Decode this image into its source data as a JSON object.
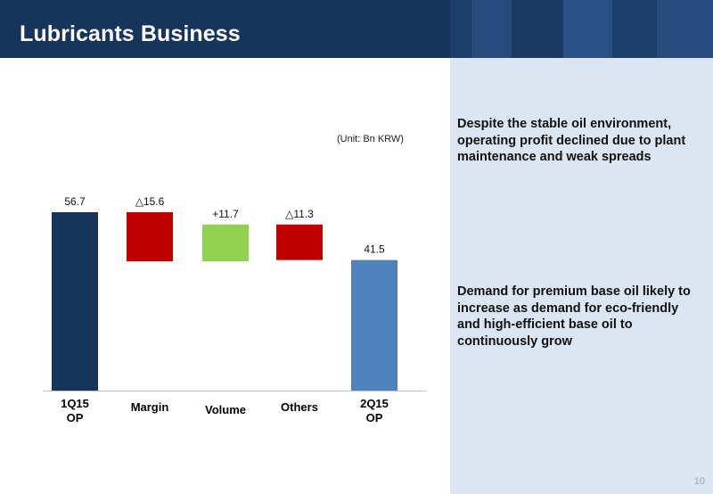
{
  "header": {
    "title": "Lubricants Business"
  },
  "unit_label": "(Unit: Bn KRW)",
  "notes": [
    "Despite the stable oil environment, operating profit declined due to plant maintenance and weak spreads",
    "Demand for premium base oil likely to increase as demand for eco-friendly and high-efficient base oil to continuously grow"
  ],
  "page_number": "10",
  "chart_data": {
    "type": "bar",
    "subtype": "waterfall",
    "categories": [
      "1Q15 OP",
      "Margin",
      "Volume",
      "Others",
      "2Q15 OP"
    ],
    "values": [
      56.7,
      -15.6,
      11.7,
      -11.3,
      41.5
    ],
    "data_labels": [
      "56.7",
      "△15.6",
      "+11.7",
      "△11.3",
      "41.5"
    ],
    "kinds": [
      "total",
      "decrease",
      "increase",
      "decrease",
      "total"
    ],
    "colors": {
      "total_start": "#17345a",
      "decrease": "#c00000",
      "increase": "#92d050",
      "total_end": "#4f81bd"
    },
    "ylim": [
      0,
      56.7
    ],
    "legend": "none",
    "grid": false
  }
}
